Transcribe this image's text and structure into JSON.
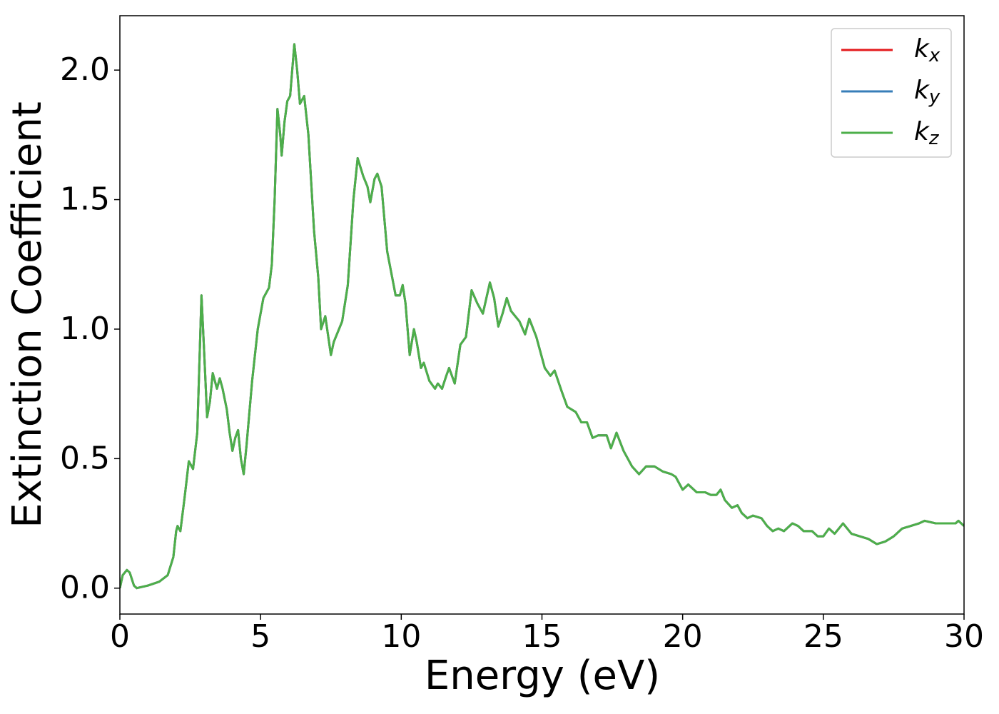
{
  "chart_data": {
    "type": "line",
    "xlabel": "Energy (eV)",
    "ylabel": "Extinction Coefficient",
    "x": [
      0,
      0.1,
      0.25,
      0.35,
      0.5,
      0.6,
      1.0,
      1.4,
      1.7,
      1.9,
      2.0,
      2.05,
      2.15,
      2.3,
      2.45,
      2.6,
      2.75,
      2.9,
      3.0,
      3.1,
      3.2,
      3.3,
      3.45,
      3.55,
      3.65,
      3.8,
      3.9,
      4.0,
      4.1,
      4.2,
      4.3,
      4.4,
      4.5,
      4.7,
      4.9,
      5.1,
      5.3,
      5.4,
      5.5,
      5.6,
      5.7,
      5.75,
      5.85,
      5.95,
      6.05,
      6.2,
      6.3,
      6.4,
      6.55,
      6.7,
      6.9,
      7.05,
      7.15,
      7.3,
      7.5,
      7.6,
      7.9,
      8.1,
      8.3,
      8.45,
      8.65,
      8.8,
      8.9,
      9.05,
      9.15,
      9.3,
      9.5,
      9.8,
      9.95,
      10.05,
      10.15,
      10.3,
      10.45,
      10.55,
      10.7,
      10.8,
      11.0,
      11.2,
      11.3,
      11.45,
      11.6,
      11.7,
      11.9,
      12.1,
      12.3,
      12.5,
      12.7,
      12.9,
      13.15,
      13.3,
      13.45,
      13.6,
      13.75,
      13.9,
      14.2,
      14.4,
      14.55,
      14.8,
      15.1,
      15.3,
      15.45,
      15.7,
      15.9,
      16.2,
      16.4,
      16.6,
      16.8,
      17.0,
      17.3,
      17.45,
      17.65,
      17.9,
      18.2,
      18.45,
      18.7,
      19.0,
      19.3,
      19.6,
      19.75,
      19.85,
      20.0,
      20.2,
      20.5,
      20.8,
      21.0,
      21.2,
      21.35,
      21.5,
      21.75,
      21.95,
      22.1,
      22.3,
      22.5,
      22.8,
      23.0,
      23.2,
      23.4,
      23.6,
      23.9,
      24.1,
      24.3,
      24.6,
      24.8,
      25.0,
      25.2,
      25.4,
      25.7,
      26.0,
      26.3,
      26.6,
      26.9,
      27.2,
      27.5,
      27.8,
      28.1,
      28.4,
      28.6,
      29.0,
      29.4,
      29.7,
      29.8,
      30.0
    ],
    "series": [
      {
        "name": "kx",
        "color": "#e41a1c",
        "values": [
          0.0,
          0.05,
          0.07,
          0.06,
          0.01,
          0.0,
          0.01,
          0.025,
          0.05,
          0.12,
          0.22,
          0.24,
          0.22,
          0.35,
          0.49,
          0.46,
          0.6,
          1.13,
          0.9,
          0.66,
          0.72,
          0.83,
          0.77,
          0.81,
          0.77,
          0.69,
          0.6,
          0.53,
          0.58,
          0.61,
          0.5,
          0.44,
          0.55,
          0.8,
          1.0,
          1.12,
          1.16,
          1.25,
          1.5,
          1.85,
          1.75,
          1.67,
          1.8,
          1.88,
          1.9,
          2.1,
          2.0,
          1.87,
          1.9,
          1.75,
          1.38,
          1.2,
          1.0,
          1.05,
          0.9,
          0.95,
          1.03,
          1.17,
          1.5,
          1.66,
          1.59,
          1.55,
          1.49,
          1.58,
          1.6,
          1.55,
          1.3,
          1.13,
          1.13,
          1.17,
          1.1,
          0.9,
          1.0,
          0.95,
          0.85,
          0.87,
          0.8,
          0.77,
          0.79,
          0.77,
          0.82,
          0.85,
          0.79,
          0.94,
          0.97,
          1.15,
          1.1,
          1.06,
          1.18,
          1.12,
          1.01,
          1.06,
          1.12,
          1.07,
          1.03,
          0.98,
          1.04,
          0.97,
          0.85,
          0.82,
          0.84,
          0.76,
          0.7,
          0.68,
          0.64,
          0.64,
          0.58,
          0.59,
          0.59,
          0.54,
          0.6,
          0.53,
          0.47,
          0.44,
          0.47,
          0.47,
          0.45,
          0.44,
          0.43,
          0.41,
          0.38,
          0.4,
          0.37,
          0.37,
          0.36,
          0.36,
          0.38,
          0.34,
          0.31,
          0.32,
          0.29,
          0.27,
          0.28,
          0.27,
          0.24,
          0.22,
          0.23,
          0.22,
          0.25,
          0.24,
          0.22,
          0.22,
          0.2,
          0.2,
          0.23,
          0.21,
          0.25,
          0.21,
          0.2,
          0.19,
          0.17,
          0.18,
          0.2,
          0.23,
          0.24,
          0.25,
          0.26,
          0.25,
          0.25,
          0.25,
          0.26,
          0.24
        ]
      },
      {
        "name": "ky",
        "color": "#377eb8",
        "values": [
          0.0,
          0.05,
          0.07,
          0.06,
          0.01,
          0.0,
          0.01,
          0.025,
          0.05,
          0.12,
          0.22,
          0.24,
          0.22,
          0.35,
          0.49,
          0.46,
          0.6,
          1.13,
          0.9,
          0.66,
          0.72,
          0.83,
          0.77,
          0.81,
          0.77,
          0.69,
          0.6,
          0.53,
          0.58,
          0.61,
          0.5,
          0.44,
          0.55,
          0.8,
          1.0,
          1.12,
          1.16,
          1.25,
          1.5,
          1.85,
          1.75,
          1.67,
          1.8,
          1.88,
          1.9,
          2.1,
          2.0,
          1.87,
          1.9,
          1.75,
          1.38,
          1.2,
          1.0,
          1.05,
          0.9,
          0.95,
          1.03,
          1.17,
          1.5,
          1.66,
          1.59,
          1.55,
          1.49,
          1.58,
          1.6,
          1.55,
          1.3,
          1.13,
          1.13,
          1.17,
          1.1,
          0.9,
          1.0,
          0.95,
          0.85,
          0.87,
          0.8,
          0.77,
          0.79,
          0.77,
          0.82,
          0.85,
          0.79,
          0.94,
          0.97,
          1.15,
          1.1,
          1.06,
          1.18,
          1.12,
          1.01,
          1.06,
          1.12,
          1.07,
          1.03,
          0.98,
          1.04,
          0.97,
          0.85,
          0.82,
          0.84,
          0.76,
          0.7,
          0.68,
          0.64,
          0.64,
          0.58,
          0.59,
          0.59,
          0.54,
          0.6,
          0.53,
          0.47,
          0.44,
          0.47,
          0.47,
          0.45,
          0.44,
          0.43,
          0.41,
          0.38,
          0.4,
          0.37,
          0.37,
          0.36,
          0.36,
          0.38,
          0.34,
          0.31,
          0.32,
          0.29,
          0.27,
          0.28,
          0.27,
          0.24,
          0.22,
          0.23,
          0.22,
          0.25,
          0.24,
          0.22,
          0.22,
          0.2,
          0.2,
          0.23,
          0.21,
          0.25,
          0.21,
          0.2,
          0.19,
          0.17,
          0.18,
          0.2,
          0.23,
          0.24,
          0.25,
          0.26,
          0.25,
          0.25,
          0.25,
          0.26,
          0.24
        ]
      },
      {
        "name": "kz",
        "color": "#4daf4a",
        "values": [
          0.0,
          0.05,
          0.07,
          0.06,
          0.01,
          0.0,
          0.01,
          0.025,
          0.05,
          0.12,
          0.22,
          0.24,
          0.22,
          0.35,
          0.49,
          0.46,
          0.6,
          1.13,
          0.9,
          0.66,
          0.72,
          0.83,
          0.77,
          0.81,
          0.77,
          0.69,
          0.6,
          0.53,
          0.58,
          0.61,
          0.5,
          0.44,
          0.55,
          0.8,
          1.0,
          1.12,
          1.16,
          1.25,
          1.5,
          1.85,
          1.75,
          1.67,
          1.8,
          1.88,
          1.9,
          2.1,
          2.0,
          1.87,
          1.9,
          1.75,
          1.38,
          1.2,
          1.0,
          1.05,
          0.9,
          0.95,
          1.03,
          1.17,
          1.5,
          1.66,
          1.59,
          1.55,
          1.49,
          1.58,
          1.6,
          1.55,
          1.3,
          1.13,
          1.13,
          1.17,
          1.1,
          0.9,
          1.0,
          0.95,
          0.85,
          0.87,
          0.8,
          0.77,
          0.79,
          0.77,
          0.82,
          0.85,
          0.79,
          0.94,
          0.97,
          1.15,
          1.1,
          1.06,
          1.18,
          1.12,
          1.01,
          1.06,
          1.12,
          1.07,
          1.03,
          0.98,
          1.04,
          0.97,
          0.85,
          0.82,
          0.84,
          0.76,
          0.7,
          0.68,
          0.64,
          0.64,
          0.58,
          0.59,
          0.59,
          0.54,
          0.6,
          0.53,
          0.47,
          0.44,
          0.47,
          0.47,
          0.45,
          0.44,
          0.43,
          0.41,
          0.38,
          0.4,
          0.37,
          0.37,
          0.36,
          0.36,
          0.38,
          0.34,
          0.31,
          0.32,
          0.29,
          0.27,
          0.28,
          0.27,
          0.24,
          0.22,
          0.23,
          0.22,
          0.25,
          0.24,
          0.22,
          0.22,
          0.2,
          0.2,
          0.23,
          0.21,
          0.25,
          0.21,
          0.2,
          0.19,
          0.17,
          0.18,
          0.2,
          0.23,
          0.24,
          0.25,
          0.26,
          0.25,
          0.25,
          0.25,
          0.26,
          0.24
        ]
      }
    ],
    "xlim": [
      0,
      30
    ],
    "xticks": [
      0,
      5,
      10,
      15,
      20,
      25,
      30
    ],
    "ylim": [
      -0.1,
      2.21
    ],
    "yticks": [
      {
        "value": 0,
        "label": "0.0"
      },
      0.5,
      {
        "value": 1,
        "label": "1.0"
      },
      1.5,
      {
        "value": 2,
        "label": "2.0"
      }
    ],
    "grid": false,
    "legend": "upper right"
  }
}
